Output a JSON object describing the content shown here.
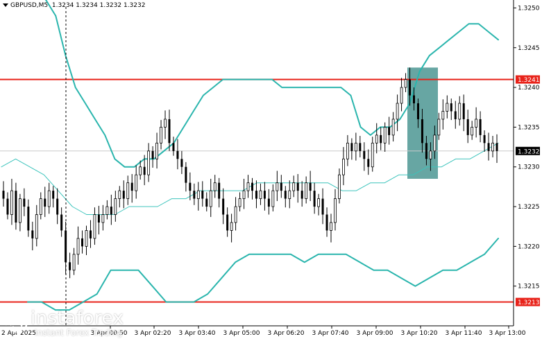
{
  "header": {
    "symbol": "GBPUSD,M5",
    "ohlc": "1.3234 1.3234 1.3232 1.3232"
  },
  "logo": {
    "name": "instaforex",
    "tagline": "Instant Forex Trading"
  },
  "colors": {
    "background": "#ffffff",
    "candle": "#000000",
    "bollinger": "#2ab5ad",
    "middle_band": "#3cc4bc",
    "level_line": "#e8231a",
    "level_label_bg": "#e8231a",
    "highlight_zone": "#5a9e9b",
    "current_price_bg": "#000000"
  },
  "chart_data": {
    "type": "candlestick",
    "symbol": "GBPUSD",
    "timeframe": "M5",
    "y_axis": {
      "range": [
        1.321,
        1.3251
      ],
      "ticks": [
        "1.3250",
        "1.3245",
        "1.3240",
        "1.3235",
        "1.3230",
        "1.3225",
        "1.3220",
        "1.3215"
      ]
    },
    "x_axis": {
      "first_label": "2 Apr 2025",
      "ticks": [
        "3 Apr 00:50",
        "3 Apr 02:20",
        "3 Apr 03:40",
        "3 Apr 05:00",
        "3 Apr 06:20",
        "3 Apr 07:40",
        "3 Apr 09:00",
        "3 Apr 10:20",
        "3 Apr 11:40",
        "3 Apr 13:00"
      ]
    },
    "levels": [
      {
        "price": 1.3241,
        "label": "1.3241"
      },
      {
        "price": 1.3213,
        "label": "1.3213"
      }
    ],
    "current_price": {
      "price": 1.3232,
      "label": "1.3232"
    },
    "highlight_zone": {
      "from_time": "3 Apr 10:00",
      "to_time": "3 Apr 10:45",
      "low": 1.32285,
      "high": 1.32425
    },
    "close_series": [
      1.3226,
      1.3224,
      1.3227,
      1.3223,
      1.3226,
      1.3225,
      1.3222,
      1.3221,
      1.3224,
      1.3226,
      1.3225,
      1.3227,
      1.3226,
      1.3224,
      1.3222,
      1.3218,
      1.3217,
      1.3219,
      1.3221,
      1.322,
      1.3222,
      1.3221,
      1.3224,
      1.3223,
      1.3224,
      1.3225,
      1.3224,
      1.3226,
      1.3227,
      1.3226,
      1.3228,
      1.3227,
      1.3229,
      1.323,
      1.3229,
      1.3232,
      1.3231,
      1.3233,
      1.3235,
      1.3236,
      1.3233,
      1.3232,
      1.3231,
      1.323,
      1.3228,
      1.3227,
      1.3226,
      1.3227,
      1.3226,
      1.3225,
      1.3227,
      1.3228,
      1.3226,
      1.3224,
      1.3222,
      1.3223,
      1.3225,
      1.3226,
      1.3227,
      1.3228,
      1.3227,
      1.3226,
      1.3227,
      1.3226,
      1.3225,
      1.3227,
      1.3228,
      1.3227,
      1.3226,
      1.3227,
      1.3228,
      1.3227,
      1.3226,
      1.3228,
      1.3227,
      1.3225,
      1.3226,
      1.3224,
      1.3222,
      1.3223,
      1.3226,
      1.3229,
      1.3231,
      1.3233,
      1.3232,
      1.3233,
      1.3232,
      1.3231,
      1.323,
      1.3233,
      1.3234,
      1.3233,
      1.3235,
      1.3234,
      1.3236,
      1.3238,
      1.324,
      1.3241,
      1.3239,
      1.3238,
      1.3236,
      1.3233,
      1.3231,
      1.3232,
      1.3234,
      1.3236,
      1.3237,
      1.3238,
      1.3237,
      1.3236,
      1.3238,
      1.3236,
      1.3234,
      1.3235,
      1.3236,
      1.3234,
      1.3233,
      1.3232,
      1.3233,
      1.3232
    ],
    "bollinger_upper": [
      1.3252,
      1.3251,
      1.3249,
      1.3244,
      1.324,
      1.3238,
      1.3236,
      1.3234,
      1.3231,
      1.323,
      1.323,
      1.3231,
      1.3231,
      1.3232,
      1.3233,
      1.3235,
      1.3237,
      1.3239,
      1.324,
      1.3241,
      1.3241,
      1.3241,
      1.3241,
      1.3241,
      1.3241,
      1.324,
      1.324,
      1.324,
      1.324,
      1.324,
      1.324,
      1.324,
      1.3239,
      1.3235,
      1.3234,
      1.3235,
      1.3235,
      1.3236,
      1.3238,
      1.3242,
      1.3244,
      1.3245,
      1.3246,
      1.3247,
      1.3248,
      1.3248,
      1.3247,
      1.3246
    ],
    "bollinger_middle": [
      1.323,
      1.3231,
      1.323,
      1.3229,
      1.3227,
      1.3225,
      1.3224,
      1.3224,
      1.3224,
      1.3225,
      1.3225,
      1.3225,
      1.3226,
      1.3226,
      1.3227,
      1.3227,
      1.3227,
      1.3227,
      1.3228,
      1.3228,
      1.3228,
      1.3228,
      1.3228,
      1.3228,
      1.3227,
      1.3227,
      1.3228,
      1.3228,
      1.3229,
      1.3229,
      1.323,
      1.323,
      1.3231,
      1.3231,
      1.3232,
      1.3233
    ],
    "bollinger_lower": [
      1.3213,
      1.3213,
      1.3212,
      1.3212,
      1.3213,
      1.3214,
      1.3217,
      1.3217,
      1.3217,
      1.3215,
      1.3213,
      1.3213,
      1.3213,
      1.3214,
      1.3216,
      1.3218,
      1.3219,
      1.3219,
      1.3219,
      1.3219,
      1.3218,
      1.3219,
      1.3219,
      1.3219,
      1.3218,
      1.3217,
      1.3217,
      1.3216,
      1.3215,
      1.3216,
      1.3217,
      1.3217,
      1.3218,
      1.3219,
      1.3221
    ]
  }
}
